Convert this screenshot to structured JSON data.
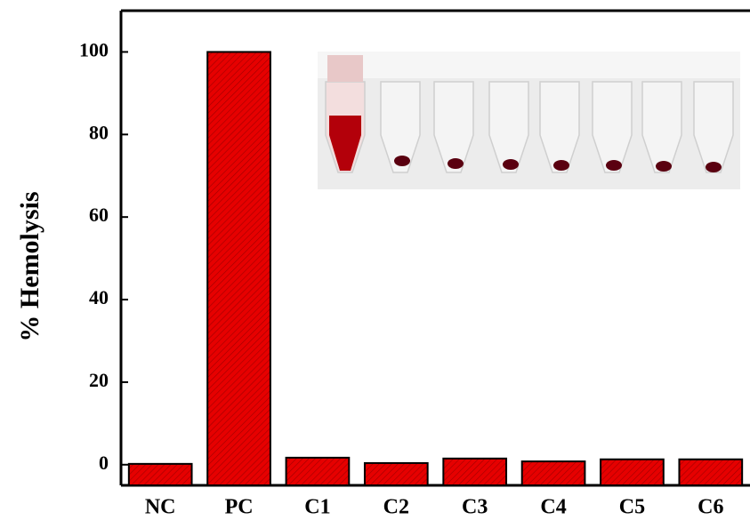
{
  "chart_data": {
    "type": "bar",
    "y_label": "% Hemolysis",
    "categories": [
      "NC",
      "PC",
      "C1",
      "C2",
      "C3",
      "C4",
      "C5",
      "C6"
    ],
    "values": [
      0.2,
      100,
      1.7,
      0.4,
      1.5,
      0.8,
      1.3,
      1.3
    ],
    "color": "#e60000",
    "ylim": [
      -5,
      110
    ],
    "yticks": [
      0,
      20,
      40,
      60,
      80,
      100
    ],
    "grid": false
  }
}
